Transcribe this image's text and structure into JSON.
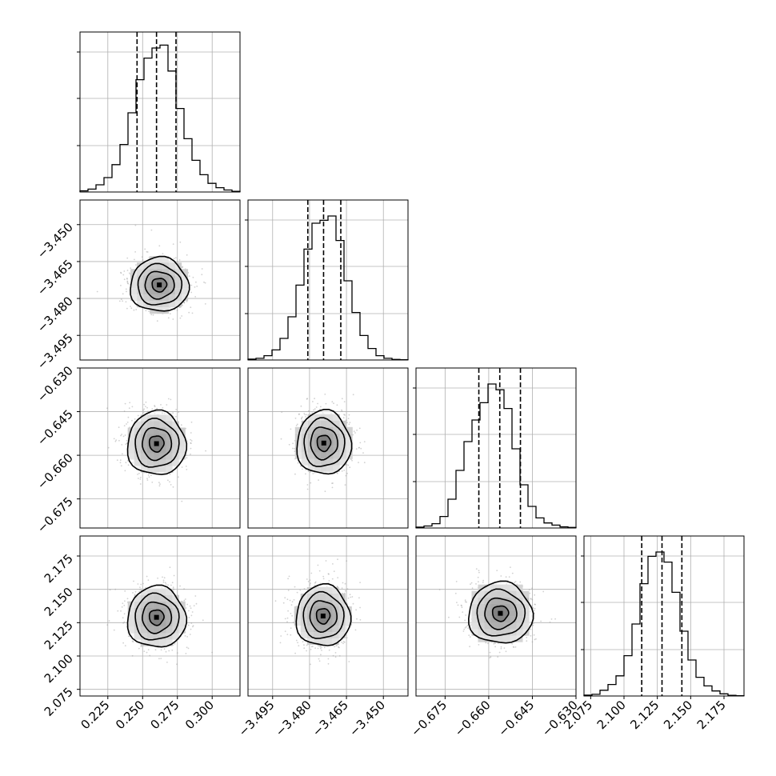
{
  "chart_data": {
    "type": "corner",
    "grid": true,
    "parameters": [
      {
        "index": 0,
        "range": [
          0.205,
          0.32
        ],
        "ticks": [
          "0.225",
          "0.250",
          "0.275",
          "0.300"
        ],
        "tick_values": [
          0.225,
          0.25,
          0.275,
          0.3
        ],
        "quantiles": [
          0.246,
          0.26,
          0.274
        ],
        "hist": [
          0.008,
          0.02,
          0.05,
          0.1,
          0.19,
          0.33,
          0.55,
          0.78,
          0.93,
          1.0,
          1.02,
          0.84,
          0.58,
          0.37,
          0.22,
          0.12,
          0.06,
          0.03,
          0.014,
          0.005
        ]
      },
      {
        "index": 1,
        "range": [
          -3.505,
          -3.44
        ],
        "ticks": [
          "−3.495",
          "−3.480",
          "−3.465",
          "−3.450"
        ],
        "tick_values": [
          -3.495,
          -3.48,
          -3.465,
          -3.45
        ],
        "quantiles": [
          -3.4807,
          -3.4743,
          -3.4673
        ],
        "hist": [
          0.006,
          0.012,
          0.03,
          0.07,
          0.15,
          0.3,
          0.52,
          0.77,
          0.95,
          0.97,
          1.0,
          0.83,
          0.55,
          0.33,
          0.17,
          0.08,
          0.03,
          0.012,
          0.004,
          0.002
        ]
      },
      {
        "index": 2,
        "range": [
          -0.685,
          -0.63
        ],
        "ticks": [
          "−0.675",
          "−0.660",
          "−0.645",
          "−0.630"
        ],
        "tick_values": [
          -0.675,
          -0.66,
          -0.645,
          -0.63
        ],
        "quantiles": [
          -0.6634,
          -0.6562,
          -0.6491
        ],
        "hist": [
          0.006,
          0.014,
          0.03,
          0.08,
          0.2,
          0.4,
          0.6,
          0.75,
          0.87,
          1.0,
          0.96,
          0.83,
          0.55,
          0.3,
          0.15,
          0.07,
          0.035,
          0.02,
          0.008,
          0.004
        ]
      },
      {
        "index": 3,
        "range": [
          2.07,
          2.19
        ],
        "ticks": [
          "2.075",
          "2.100",
          "2.125",
          "2.150",
          "2.175"
        ],
        "tick_values": [
          2.075,
          2.1,
          2.125,
          2.15,
          2.175
        ],
        "quantiles": [
          2.1133,
          2.1285,
          2.1434
        ],
        "hist": [
          0.006,
          0.012,
          0.04,
          0.08,
          0.14,
          0.28,
          0.5,
          0.78,
          0.97,
          1.0,
          0.93,
          0.72,
          0.45,
          0.25,
          0.13,
          0.07,
          0.035,
          0.015,
          0.005,
          0.002
        ]
      }
    ],
    "pairs": [
      {
        "x": 0,
        "y": 1,
        "center": [
          0.262,
          -3.4745
        ],
        "sigma": [
          0.0105,
          0.0055
        ]
      },
      {
        "x": 0,
        "y": 2,
        "center": [
          0.26,
          -0.656
        ],
        "sigma": [
          0.0105,
          0.0055
        ]
      },
      {
        "x": 1,
        "y": 2,
        "center": [
          -3.4742,
          -0.6558
        ],
        "sigma": [
          0.0055,
          0.0055
        ]
      },
      {
        "x": 0,
        "y": 3,
        "center": [
          0.26,
          2.129
        ],
        "sigma": [
          0.0105,
          0.0115
        ]
      },
      {
        "x": 1,
        "y": 3,
        "center": [
          -3.4745,
          2.13
        ],
        "sigma": [
          0.0055,
          0.0115
        ]
      },
      {
        "x": 2,
        "y": 3,
        "center": [
          -0.656,
          2.132
        ],
        "sigma": [
          0.0055,
          0.0115
        ]
      }
    ]
  }
}
